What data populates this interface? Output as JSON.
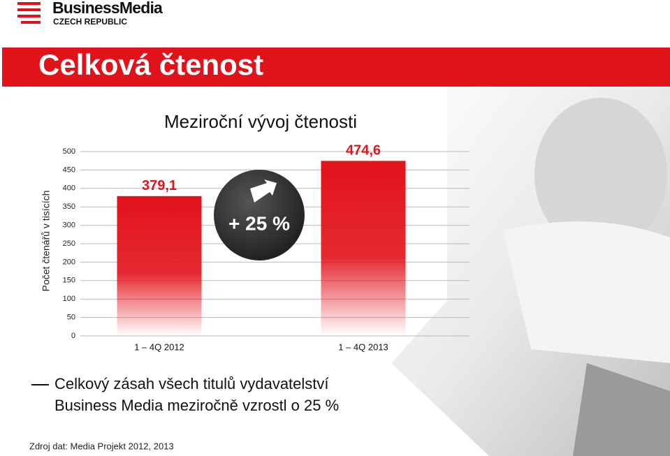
{
  "header": {
    "brand": "BusinessMedia",
    "country": "CZECH REPUBLIC",
    "title": "Celková čtenost"
  },
  "chart_data": {
    "type": "bar",
    "title": "Meziroční vývoj čtenosti",
    "y_label": "Počet čtenářů v tisících",
    "categories": [
      "1 – 4Q 2012",
      "1 – 4Q 2013"
    ],
    "values": [
      379.1,
      474.6
    ],
    "value_labels": [
      "379,1",
      "474,6"
    ],
    "color": "#e2121b",
    "ylim": [
      0,
      500
    ],
    "yticks": [
      0,
      50,
      100,
      150,
      200,
      250,
      300,
      350,
      400,
      450,
      500
    ],
    "grid": true,
    "annotation": "+ 25 %"
  },
  "summary": {
    "line1": "Celkový zásah všech titulů vydavatelství",
    "line2": "Business Media meziročně vzrostl o 25 %"
  },
  "source": "Zdroj dat: Media Projekt 2012, 2013"
}
